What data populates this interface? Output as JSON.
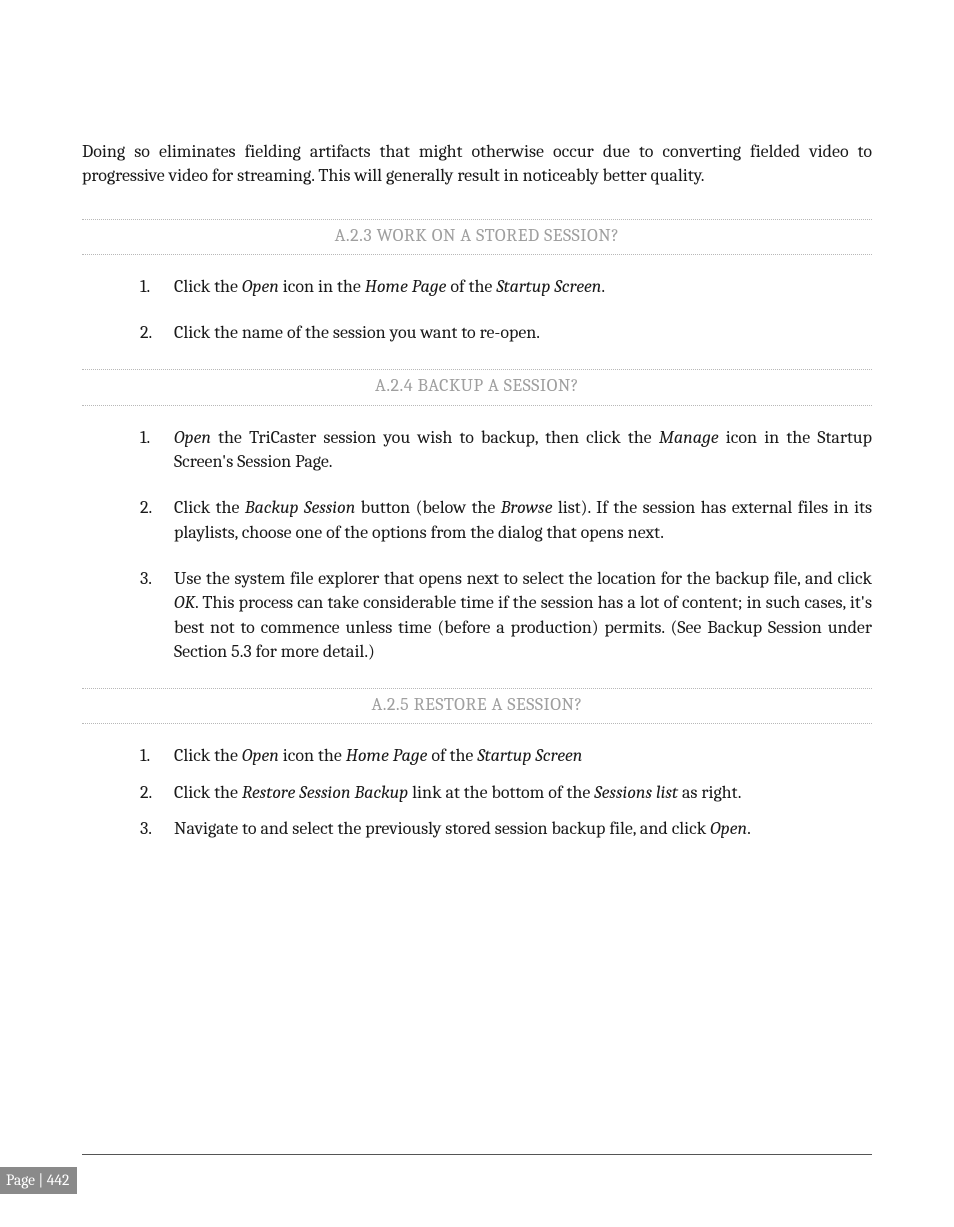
{
  "intro": "Doing so eliminates fielding artifacts that might otherwise occur due to converting fielded video to progressive video for streaming.  This will generally result in noticeably better quality.",
  "sections": [
    {
      "heading": "A.2.3 WORK ON A STORED SESSION?",
      "tight": false,
      "items": [
        {
          "num": "1.",
          "parts": [
            {
              "t": "Click the "
            },
            {
              "t": "Open",
              "i": true
            },
            {
              "t": " icon in the "
            },
            {
              "t": "Home Page",
              "i": true
            },
            {
              "t": " of the "
            },
            {
              "t": "Startup Screen",
              "i": true
            },
            {
              "t": "."
            }
          ]
        },
        {
          "num": "2.",
          "parts": [
            {
              "t": "Click the name of the session you want to re-open."
            }
          ]
        }
      ]
    },
    {
      "heading": "A.2.4 BACKUP A SESSION?",
      "tight": false,
      "items": [
        {
          "num": "1.",
          "parts": [
            {
              "t": "Open",
              "i": true
            },
            {
              "t": " the TriCaster session you wish to backup, then click the "
            },
            {
              "t": "Manage",
              "i": true
            },
            {
              "t": " icon in the Startup Screen's Session Page."
            }
          ]
        },
        {
          "num": "2.",
          "parts": [
            {
              "t": "Click the "
            },
            {
              "t": "Backup Session",
              "i": true
            },
            {
              "t": " button (below the "
            },
            {
              "t": "Browse",
              "i": true
            },
            {
              "t": " list).  If the session has external files in its playlists, choose one of the options from the dialog that opens next."
            }
          ]
        },
        {
          "num": "3.",
          "parts": [
            {
              "t": "Use the system file explorer that opens next to select the location for the backup file, and click "
            },
            {
              "t": "OK",
              "i": true
            },
            {
              "t": ". This process can take considerable time if the session has a lot of content; in such cases, it's best not to commence unless time (before a production) permits. (See Backup Session under Section 5.3 for more detail.)"
            }
          ]
        }
      ]
    },
    {
      "heading": "A.2.5 RESTORE A SESSION?",
      "tight": true,
      "items": [
        {
          "num": "1.",
          "parts": [
            {
              "t": "Click the "
            },
            {
              "t": "Open",
              "i": true
            },
            {
              "t": " icon the "
            },
            {
              "t": "Home Page",
              "i": true
            },
            {
              "t": " of the "
            },
            {
              "t": "Startup Screen",
              "i": true
            }
          ]
        },
        {
          "num": "2.",
          "parts": [
            {
              "t": "Click the "
            },
            {
              "t": "Restore Session Backup",
              "i": true
            },
            {
              "t": " link at the bottom of the "
            },
            {
              "t": "Sessions list",
              "i": true
            },
            {
              "t": " as right."
            }
          ]
        },
        {
          "num": "3.",
          "parts": [
            {
              "t": "Navigate to and select the previously stored session backup file, and click "
            },
            {
              "t": "Open",
              "i": true
            },
            {
              "t": "."
            }
          ]
        }
      ]
    }
  ],
  "page_label": "Page | 442",
  "colors": {
    "heading": "#9f9f9f",
    "dotted_border": "#b8b8b8",
    "badge_bg": "#8a8a8a",
    "badge_text": "#ffffff",
    "body_text": "#1a1a1a",
    "rule": "#555555",
    "background": "#ffffff"
  },
  "typography": {
    "body_font": "Cambria, Georgia, serif",
    "body_size_pt": 13.5,
    "heading_size_pt": 13.5,
    "page_label_size_pt": 11.5
  }
}
